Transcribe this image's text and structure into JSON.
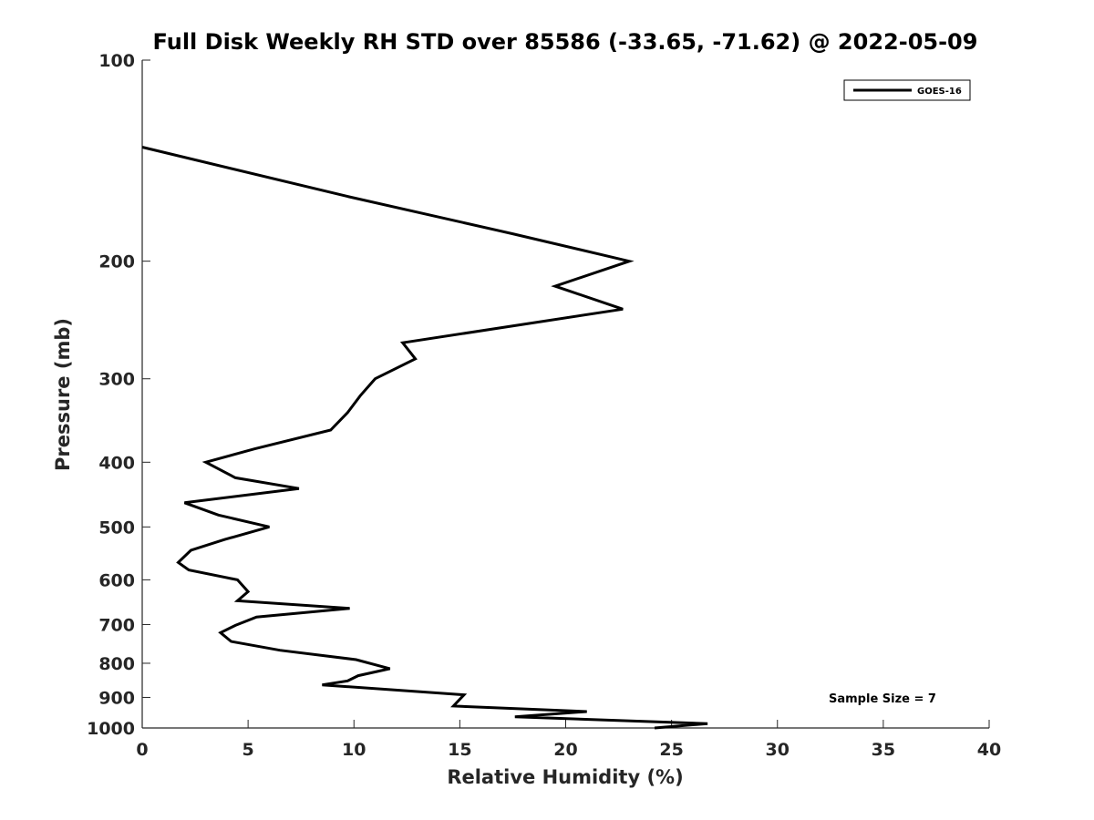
{
  "chart_data": {
    "type": "line",
    "title": "Full Disk Weekly RH STD over 85586 (-33.65, -71.62) @ 2022-05-09",
    "xlabel": "Relative Humidity (%)",
    "ylabel": "Pressure (mb)",
    "xlim": [
      0,
      40
    ],
    "ylim": [
      100,
      1000
    ],
    "y_scale": "log",
    "y_direction": "reversed",
    "x_ticks": [
      0,
      5,
      10,
      15,
      20,
      25,
      30,
      35,
      40
    ],
    "y_ticks": [
      100,
      200,
      300,
      400,
      500,
      600,
      700,
      800,
      900,
      1000
    ],
    "grid": false,
    "legend_position": "top-right",
    "annotation": "Sample Size = 7",
    "series": [
      {
        "name": "GOES-16",
        "color": "#000000",
        "points": [
          {
            "rh": 0.0,
            "p": 135
          },
          {
            "rh": 9.7,
            "p": 160
          },
          {
            "rh": 17.5,
            "p": 182
          },
          {
            "rh": 23.0,
            "p": 200
          },
          {
            "rh": 19.5,
            "p": 218
          },
          {
            "rh": 22.7,
            "p": 236
          },
          {
            "rh": 12.3,
            "p": 265
          },
          {
            "rh": 12.9,
            "p": 280
          },
          {
            "rh": 11.0,
            "p": 300
          },
          {
            "rh": 10.3,
            "p": 318
          },
          {
            "rh": 9.7,
            "p": 337
          },
          {
            "rh": 8.9,
            "p": 358
          },
          {
            "rh": 5.3,
            "p": 382
          },
          {
            "rh": 3.0,
            "p": 400
          },
          {
            "rh": 4.4,
            "p": 422
          },
          {
            "rh": 7.4,
            "p": 438
          },
          {
            "rh": 2.0,
            "p": 460
          },
          {
            "rh": 3.6,
            "p": 480
          },
          {
            "rh": 6.0,
            "p": 500
          },
          {
            "rh": 3.9,
            "p": 522
          },
          {
            "rh": 2.3,
            "p": 542
          },
          {
            "rh": 1.7,
            "p": 565
          },
          {
            "rh": 2.2,
            "p": 580
          },
          {
            "rh": 4.5,
            "p": 600
          },
          {
            "rh": 5.0,
            "p": 625
          },
          {
            "rh": 4.5,
            "p": 645
          },
          {
            "rh": 9.8,
            "p": 662
          },
          {
            "rh": 5.4,
            "p": 682
          },
          {
            "rh": 4.4,
            "p": 702
          },
          {
            "rh": 3.7,
            "p": 720
          },
          {
            "rh": 4.2,
            "p": 742
          },
          {
            "rh": 6.5,
            "p": 765
          },
          {
            "rh": 10.1,
            "p": 790
          },
          {
            "rh": 11.7,
            "p": 815
          },
          {
            "rh": 10.2,
            "p": 835
          },
          {
            "rh": 9.7,
            "p": 850
          },
          {
            "rh": 8.5,
            "p": 862
          },
          {
            "rh": 15.2,
            "p": 892
          },
          {
            "rh": 14.7,
            "p": 927
          },
          {
            "rh": 21.0,
            "p": 945
          },
          {
            "rh": 17.6,
            "p": 962
          },
          {
            "rh": 26.7,
            "p": 985
          },
          {
            "rh": 24.2,
            "p": 1000
          }
        ]
      }
    ]
  }
}
